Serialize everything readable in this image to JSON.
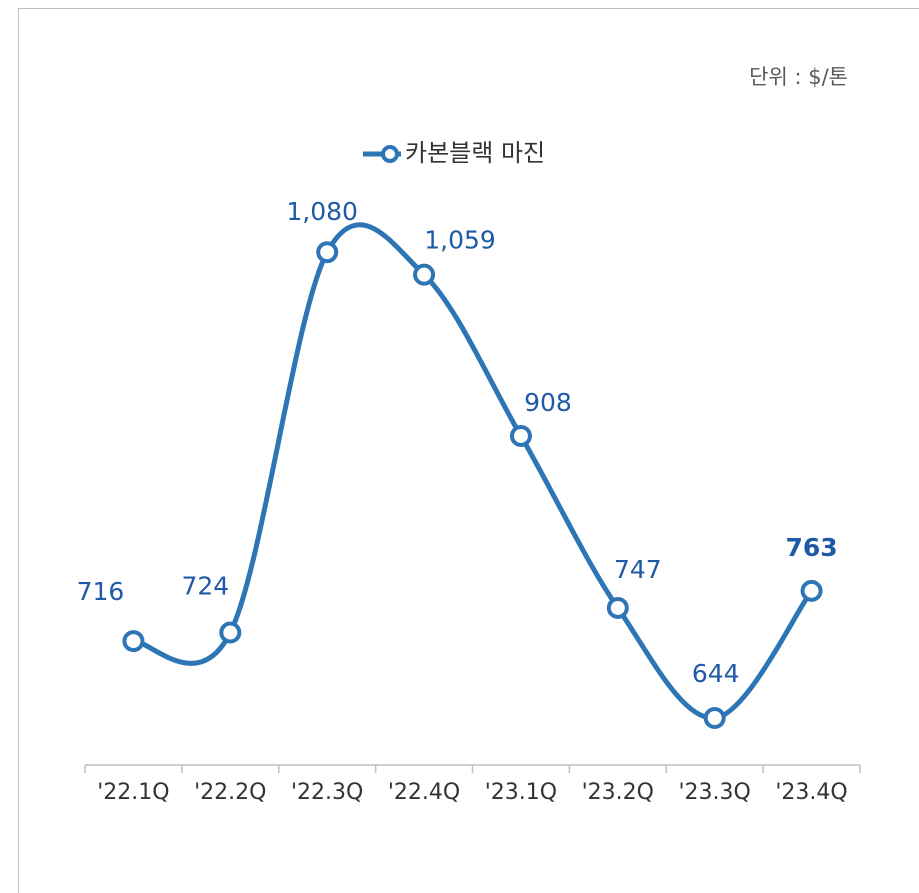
{
  "chart_data": {
    "type": "line",
    "annotation": "단위 : $/톤",
    "categories": [
      "'22.1Q",
      "'22.2Q",
      "'22.3Q",
      "'22.4Q",
      "'23.1Q",
      "'23.2Q",
      "'23.3Q",
      "'23.4Q"
    ],
    "series": [
      {
        "name": "카본블랙 마진",
        "color": "#2e75b6",
        "values": [
          716,
          724,
          1080,
          1059,
          908,
          747,
          644,
          763
        ],
        "value_labels": [
          "716",
          "724",
          "1,080",
          "1,059",
          "908",
          "747",
          "644",
          "763"
        ]
      }
    ],
    "ylim": [
      600,
      1200
    ]
  }
}
